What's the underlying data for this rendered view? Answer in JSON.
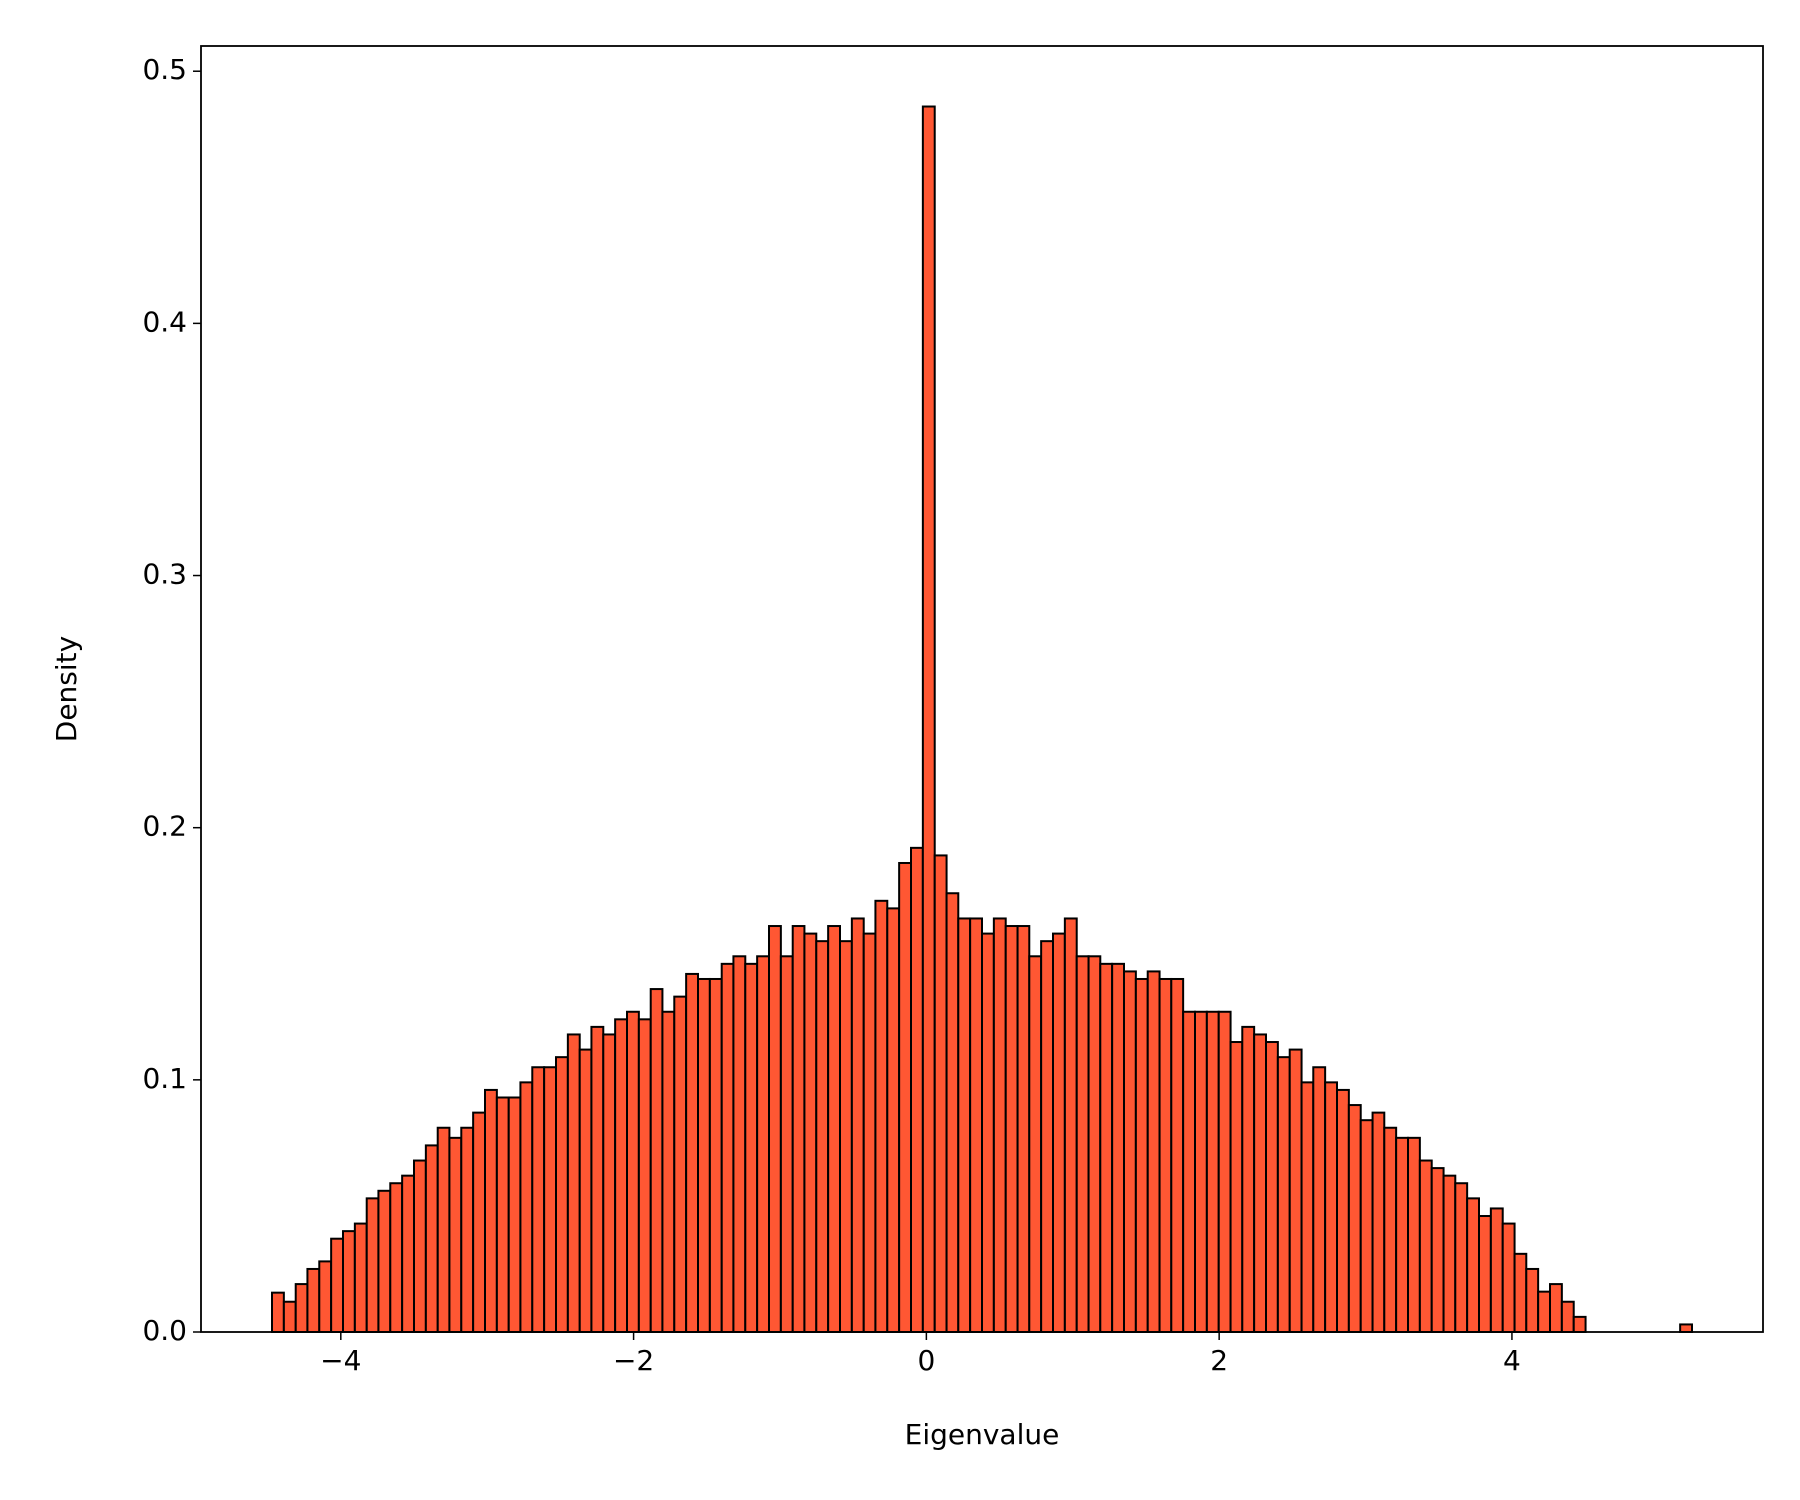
{
  "chart_data": {
    "type": "histogram",
    "x_label": "Eigenvalue",
    "y_label": "Density",
    "color": "#ff5733",
    "edgecolor": "#000000",
    "bins": [
      -4.47,
      -4.389,
      -4.308,
      -4.228,
      -4.147,
      -4.066,
      -3.985,
      -3.904,
      -3.823,
      -3.743,
      -3.662,
      -3.581,
      -3.5,
      -3.419,
      -3.338,
      -3.258,
      -3.177,
      -3.096,
      -3.015,
      -2.934,
      -2.853,
      -2.773,
      -2.692,
      -2.611,
      -2.53,
      -2.449,
      -2.368,
      -2.288,
      -2.207,
      -2.126,
      -2.045,
      -1.964,
      -1.883,
      -1.803,
      -1.722,
      -1.641,
      -1.56,
      -1.479,
      -1.398,
      -1.318,
      -1.237,
      -1.156,
      -1.075,
      -0.994,
      -0.913,
      -0.833,
      -0.752,
      -0.671,
      -0.59,
      -0.509,
      -0.428,
      -0.348,
      -0.267,
      -0.186,
      -0.105,
      -0.024,
      0.057,
      0.138,
      0.218,
      0.299,
      0.38,
      0.461,
      0.542,
      0.623,
      0.703,
      0.784,
      0.865,
      0.946,
      1.027,
      1.108,
      1.188,
      1.269,
      1.35,
      1.431,
      1.512,
      1.593,
      1.673,
      1.754,
      1.835,
      1.916,
      1.997,
      2.078,
      2.158,
      2.239,
      2.32,
      2.401,
      2.482,
      2.563,
      2.643,
      2.724,
      2.805,
      2.886,
      2.967,
      3.048,
      3.128,
      3.209,
      3.29,
      3.371,
      3.452,
      3.533,
      3.613,
      3.694,
      3.775,
      3.856,
      3.937,
      4.018,
      4.098,
      4.179,
      4.26,
      4.341,
      4.422,
      4.503,
      4.583,
      4.664,
      4.745,
      4.826,
      4.907,
      4.988,
      5.068,
      5.149,
      5.23
    ],
    "values": [
      0.0156,
      0.012,
      0.019,
      0.025,
      0.028,
      0.037,
      0.04,
      0.043,
      0.053,
      0.056,
      0.059,
      0.062,
      0.068,
      0.074,
      0.081,
      0.077,
      0.081,
      0.087,
      0.096,
      0.093,
      0.093,
      0.099,
      0.105,
      0.105,
      0.109,
      0.118,
      0.112,
      0.121,
      0.118,
      0.124,
      0.127,
      0.124,
      0.136,
      0.127,
      0.133,
      0.142,
      0.14,
      0.14,
      0.146,
      0.149,
      0.146,
      0.149,
      0.161,
      0.149,
      0.161,
      0.158,
      0.155,
      0.161,
      0.155,
      0.164,
      0.158,
      0.171,
      0.168,
      0.186,
      0.192,
      0.486,
      0.189,
      0.174,
      0.164,
      0.164,
      0.158,
      0.164,
      0.161,
      0.161,
      0.149,
      0.155,
      0.158,
      0.164,
      0.149,
      0.149,
      0.146,
      0.146,
      0.143,
      0.14,
      0.143,
      0.14,
      0.14,
      0.127,
      0.127,
      0.127,
      0.127,
      0.115,
      0.121,
      0.118,
      0.115,
      0.109,
      0.112,
      0.099,
      0.105,
      0.099,
      0.096,
      0.09,
      0.084,
      0.087,
      0.081,
      0.077,
      0.077,
      0.068,
      0.065,
      0.062,
      0.059,
      0.053,
      0.046,
      0.049,
      0.043,
      0.031,
      0.025,
      0.016,
      0.019,
      0.012,
      0.006,
      0,
      0,
      0,
      0,
      0,
      0,
      0,
      0,
      0.003
    ],
    "xlim": [
      -4.955,
      5.715
    ],
    "ylim": [
      0,
      0.51
    ],
    "xticks": [
      {
        "value": -4,
        "label": "−4"
      },
      {
        "value": -2,
        "label": "−2"
      },
      0,
      2,
      4
    ],
    "yticks": [
      {
        "value": 0,
        "label": "0.0"
      },
      0.1,
      0.2,
      0.3,
      0.4,
      0.5
    ]
  }
}
